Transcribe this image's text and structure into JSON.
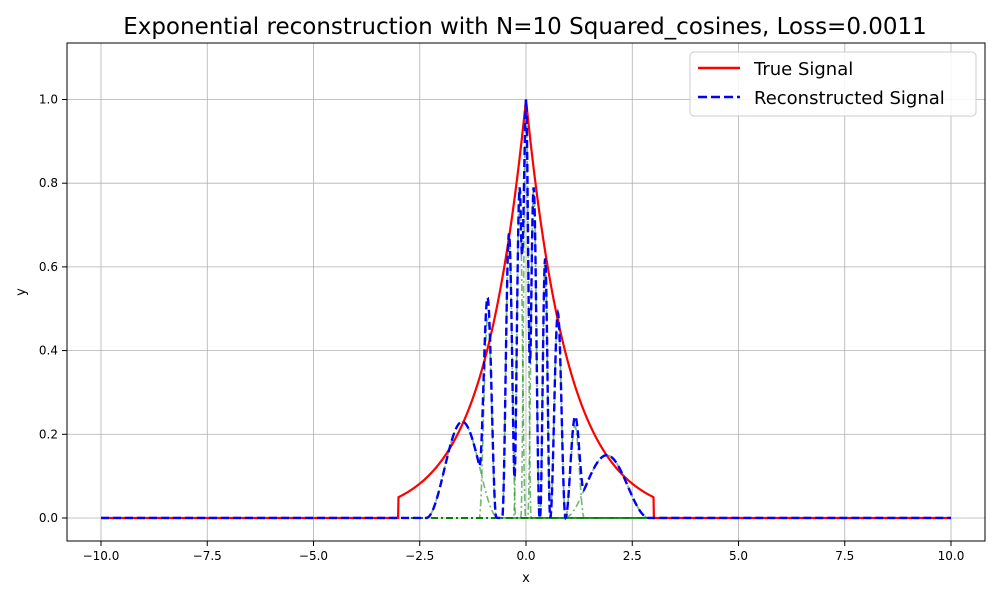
{
  "chart_data": {
    "type": "line",
    "title": "Exponential reconstruction with N=10 Squared_cosines, Loss=0.0011",
    "xlabel": "x",
    "ylabel": "y",
    "xlim": [
      -10.8,
      10.8
    ],
    "ylim": [
      -0.055,
      1.135
    ],
    "xticks": [
      -10.0,
      -7.5,
      -5.0,
      -2.5,
      0.0,
      2.5,
      5.0,
      7.5,
      10.0
    ],
    "xtick_labels": [
      "−10.0",
      "−7.5",
      "−5.0",
      "−2.5",
      "0.0",
      "2.5",
      "5.0",
      "7.5",
      "10.0"
    ],
    "yticks": [
      0.0,
      0.2,
      0.4,
      0.6,
      0.8,
      1.0
    ],
    "ytick_labels": [
      "0.0",
      "0.2",
      "0.4",
      "0.6",
      "0.8",
      "1.0"
    ],
    "grid": true,
    "legend_position": "top-right",
    "x_range": [
      -10,
      10
    ],
    "support_halfwidth": 3,
    "true_signal": {
      "name": "True Signal",
      "color": "#ff0000",
      "style": "solid",
      "formula": "exp(-|x|) for |x|<=3, 0 otherwise"
    },
    "reconstructed_signal": {
      "name": "Reconstructed Signal",
      "color": "#0000ff",
      "style": "dashed"
    },
    "basis_color": "#008000",
    "components": [
      {
        "center": -1.5,
        "halfwidth": 0.85,
        "amplitude": 0.23
      },
      {
        "center": -0.9,
        "halfwidth": 0.2,
        "amplitude": 0.48
      },
      {
        "center": -0.4,
        "halfwidth": 0.16,
        "amplitude": 0.68
      },
      {
        "center": -0.15,
        "halfwidth": 0.14,
        "amplitude": 0.79
      },
      {
        "center": 0.0,
        "halfwidth": 0.12,
        "amplitude": 1.0
      },
      {
        "center": 0.18,
        "halfwidth": 0.14,
        "amplitude": 0.79
      },
      {
        "center": 0.45,
        "halfwidth": 0.12,
        "amplitude": 0.62
      },
      {
        "center": 0.75,
        "halfwidth": 0.18,
        "amplitude": 0.49
      },
      {
        "center": 1.15,
        "halfwidth": 0.22,
        "amplitude": 0.22
      },
      {
        "center": 1.9,
        "halfwidth": 1.0,
        "amplitude": 0.15
      }
    ]
  }
}
